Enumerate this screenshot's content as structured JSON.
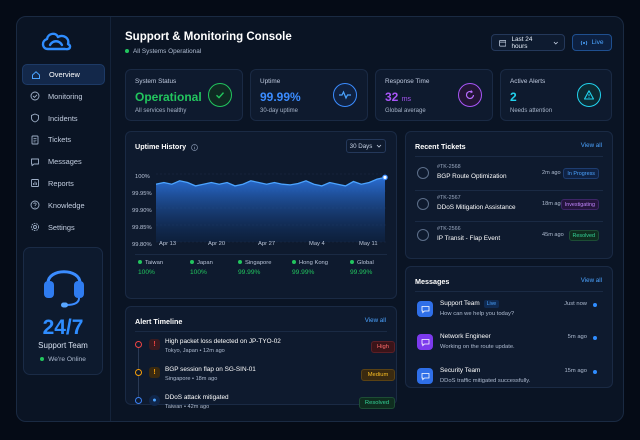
{
  "header": {
    "title": "Support & Monitoring Console",
    "status": "All Systems Operational",
    "time_range": "Last 24 hours",
    "live_label": "Live"
  },
  "sidebar": {
    "items": [
      {
        "label": "Overview",
        "icon": "home-icon",
        "active": true
      },
      {
        "label": "Monitoring",
        "icon": "check-circle-icon"
      },
      {
        "label": "Incidents",
        "icon": "shield-icon"
      },
      {
        "label": "Tickets",
        "icon": "document-icon"
      },
      {
        "label": "Messages",
        "icon": "chat-icon"
      },
      {
        "label": "Reports",
        "icon": "report-icon"
      },
      {
        "label": "Knowledge",
        "icon": "help-circle-icon"
      },
      {
        "label": "Settings",
        "icon": "gear-icon"
      }
    ],
    "support": {
      "big": "24/7",
      "team": "Support Team",
      "online": "We're Online"
    }
  },
  "stats": [
    {
      "label": "System Status",
      "value": "Operational",
      "unit": "",
      "sub": "All services healthy",
      "color": "#22c55e",
      "icon": "check-icon"
    },
    {
      "label": "Uptime",
      "value": "99.99%",
      "unit": "",
      "sub": "30-day uptime",
      "color": "#3b8cff",
      "icon": "pulse-icon"
    },
    {
      "label": "Response Time",
      "value": "32",
      "unit": "ms",
      "sub": "Global average",
      "color": "#a855f7",
      "icon": "refresh-icon"
    },
    {
      "label": "Active Alerts",
      "value": "2",
      "unit": "",
      "sub": "Needs attention",
      "color": "#22d3ee",
      "icon": "warning-icon"
    }
  ],
  "uptime": {
    "title": "Uptime History",
    "period": "30 Days",
    "regions": [
      {
        "name": "Taiwan",
        "pct": "100%"
      },
      {
        "name": "Japan",
        "pct": "100%"
      },
      {
        "name": "Singapore",
        "pct": "99.99%"
      },
      {
        "name": "Hong Kong",
        "pct": "99.99%"
      },
      {
        "name": "Global",
        "pct": "99.99%"
      }
    ]
  },
  "chart_data": {
    "type": "area",
    "title": "Uptime History",
    "yticks": [
      "100%",
      "99.95%",
      "99.90%",
      "99.85%",
      "99.80%"
    ],
    "ylim": [
      99.8,
      100
    ],
    "xticks": [
      "Apr 13",
      "Apr 20",
      "Apr 27",
      "May 4",
      "May 11"
    ],
    "series": [
      {
        "values": [
          99.97,
          99.975,
          99.97,
          99.98,
          99.975,
          99.965,
          99.97,
          99.975,
          99.97,
          99.975,
          99.965,
          99.97,
          99.98,
          99.975,
          99.97,
          99.975,
          99.97,
          99.968,
          99.972,
          99.98,
          99.97,
          99.965,
          99.975,
          99.97,
          99.965,
          99.978,
          99.97,
          99.975,
          99.985,
          99.99
        ]
      }
    ],
    "grid": true
  },
  "alerts": {
    "title": "Alert Timeline",
    "view_all": "View all",
    "items": [
      {
        "title": "High packet loss detected on JP-TYO-02",
        "sub": "Tokyo, Japan  •  12m ago",
        "status": "High",
        "color": "#ef4444"
      },
      {
        "title": "BGP session flap on SG-SIN-01",
        "sub": "Singapore  •  18m ago",
        "status": "Medium",
        "color": "#f59e0b"
      },
      {
        "title": "DDoS attack mitigated",
        "sub": "Taiwan  •  42m ago",
        "status": "Resolved",
        "color": "#3b82f6"
      }
    ]
  },
  "tickets": {
    "title": "Recent Tickets",
    "view_all": "View all",
    "items": [
      {
        "id": "#TK-2568",
        "title": "BGP Route Optimization",
        "time": "2m ago",
        "status": "In Progress",
        "color": "#3b8cff"
      },
      {
        "id": "#TK-2567",
        "title": "DDoS Mitigation Assistance",
        "time": "18m ago",
        "status": "Investigating",
        "color": "#a855f7"
      },
      {
        "id": "#TK-2566",
        "title": "IP Transit - Flap Event",
        "time": "45m ago",
        "status": "Resolved",
        "color": "#22c55e"
      }
    ]
  },
  "messages": {
    "title": "Messages",
    "view_all": "View all",
    "items": [
      {
        "name": "Support Team",
        "badge": "Live",
        "text": "How can we help you today?",
        "time": "Just now",
        "color": "#2f6fe8"
      },
      {
        "name": "Network Engineer",
        "badge": "",
        "text": "Working on the route update.",
        "time": "5m ago",
        "color": "#7c3aed"
      },
      {
        "name": "Security Team",
        "badge": "",
        "text": "DDoS traffic mitigated successfully.",
        "time": "15m ago",
        "color": "#2f6fe8"
      }
    ]
  }
}
